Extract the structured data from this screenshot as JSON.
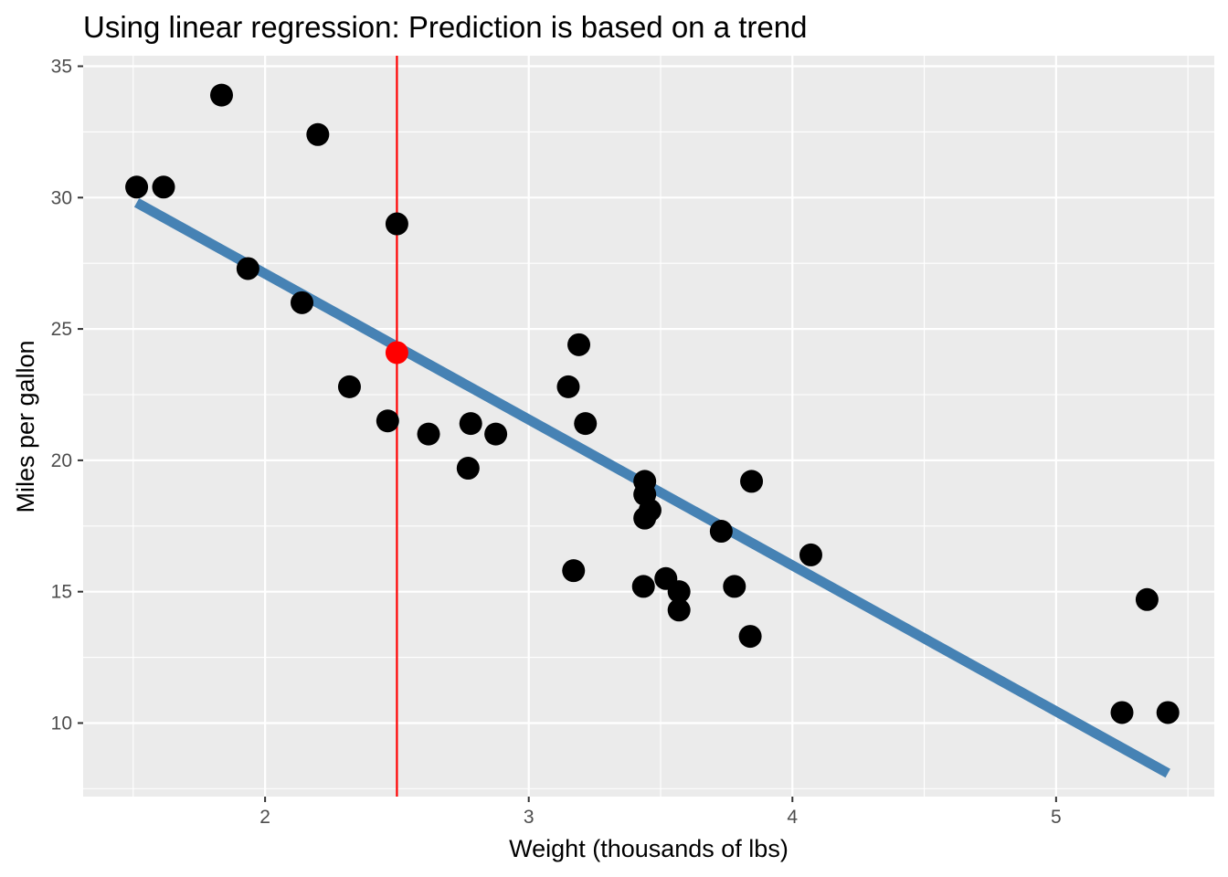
{
  "chart_data": {
    "type": "scatter",
    "title": "Using linear regression: Prediction is based on a trend",
    "xlabel": "Weight (thousands of lbs)",
    "ylabel": "Miles per gallon",
    "xlim": [
      1.31,
      5.6
    ],
    "ylim": [
      7.2,
      35.4
    ],
    "x_ticks": [
      2,
      3,
      4,
      5
    ],
    "y_ticks": [
      10,
      15,
      20,
      25,
      30,
      35
    ],
    "grid": true,
    "points": [
      {
        "x": 1.513,
        "y": 30.4
      },
      {
        "x": 1.615,
        "y": 30.4
      },
      {
        "x": 1.835,
        "y": 33.9
      },
      {
        "x": 1.935,
        "y": 27.3
      },
      {
        "x": 2.14,
        "y": 26.0
      },
      {
        "x": 2.2,
        "y": 32.4
      },
      {
        "x": 2.32,
        "y": 22.8
      },
      {
        "x": 2.465,
        "y": 21.5
      },
      {
        "x": 2.62,
        "y": 21.0
      },
      {
        "x": 2.77,
        "y": 19.7
      },
      {
        "x": 2.78,
        "y": 21.4
      },
      {
        "x": 2.875,
        "y": 21.0
      },
      {
        "x": 3.15,
        "y": 22.8
      },
      {
        "x": 3.17,
        "y": 15.8
      },
      {
        "x": 3.19,
        "y": 24.4
      },
      {
        "x": 3.215,
        "y": 21.4
      },
      {
        "x": 3.435,
        "y": 15.2
      },
      {
        "x": 3.44,
        "y": 19.2
      },
      {
        "x": 3.44,
        "y": 18.7
      },
      {
        "x": 3.44,
        "y": 17.8
      },
      {
        "x": 3.46,
        "y": 18.1
      },
      {
        "x": 3.52,
        "y": 15.5
      },
      {
        "x": 3.57,
        "y": 15.0
      },
      {
        "x": 3.57,
        "y": 14.3
      },
      {
        "x": 3.73,
        "y": 17.3
      },
      {
        "x": 3.78,
        "y": 15.2
      },
      {
        "x": 3.84,
        "y": 13.3
      },
      {
        "x": 3.845,
        "y": 19.2
      },
      {
        "x": 4.07,
        "y": 16.4
      },
      {
        "x": 5.25,
        "y": 10.4
      },
      {
        "x": 5.345,
        "y": 14.7
      },
      {
        "x": 5.424,
        "y": 10.4
      },
      {
        "x": 2.5,
        "y": 29.0
      }
    ],
    "regression_line": {
      "x": [
        1.513,
        5.424
      ],
      "y": [
        29.81,
        8.09
      ],
      "color": "#4682B4"
    },
    "prediction_vline_x": 2.5,
    "prediction_vline_color": "#FF0000",
    "prediction_point": {
      "x": 2.5,
      "y": 24.1,
      "color": "#FF0000"
    },
    "point_color": "#000000",
    "panel_background": "#EBEBEB",
    "grid_color": "#FFFFFF"
  }
}
